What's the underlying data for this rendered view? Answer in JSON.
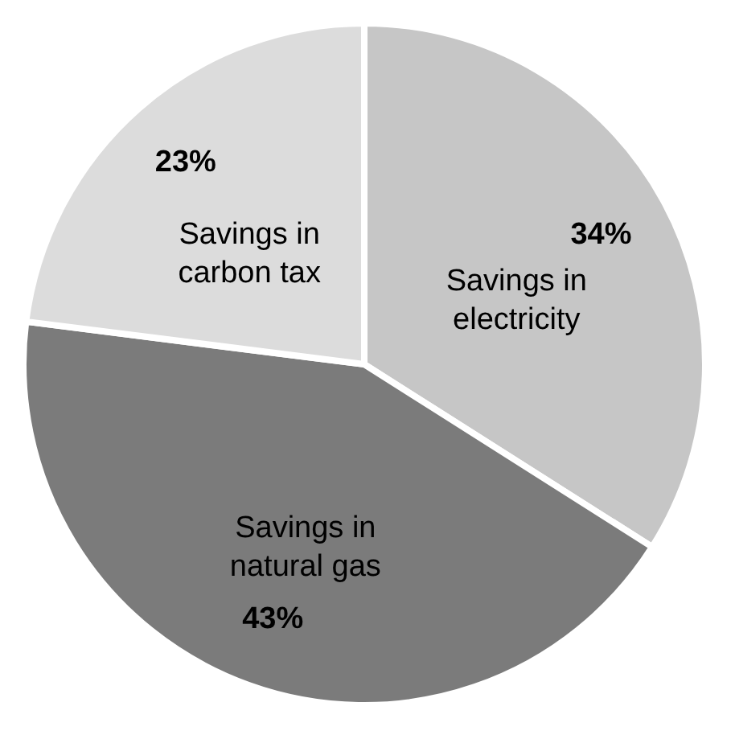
{
  "chart_data": {
    "type": "pie",
    "categories": [
      "Savings in electricity",
      "Savings in natural gas",
      "Savings in carbon tax"
    ],
    "values": [
      34,
      43,
      23
    ],
    "colors": [
      "#c6c6c6",
      "#7b7b7b",
      "#dcdcdc"
    ],
    "value_labels": [
      "34%",
      "43%",
      "23%"
    ]
  }
}
